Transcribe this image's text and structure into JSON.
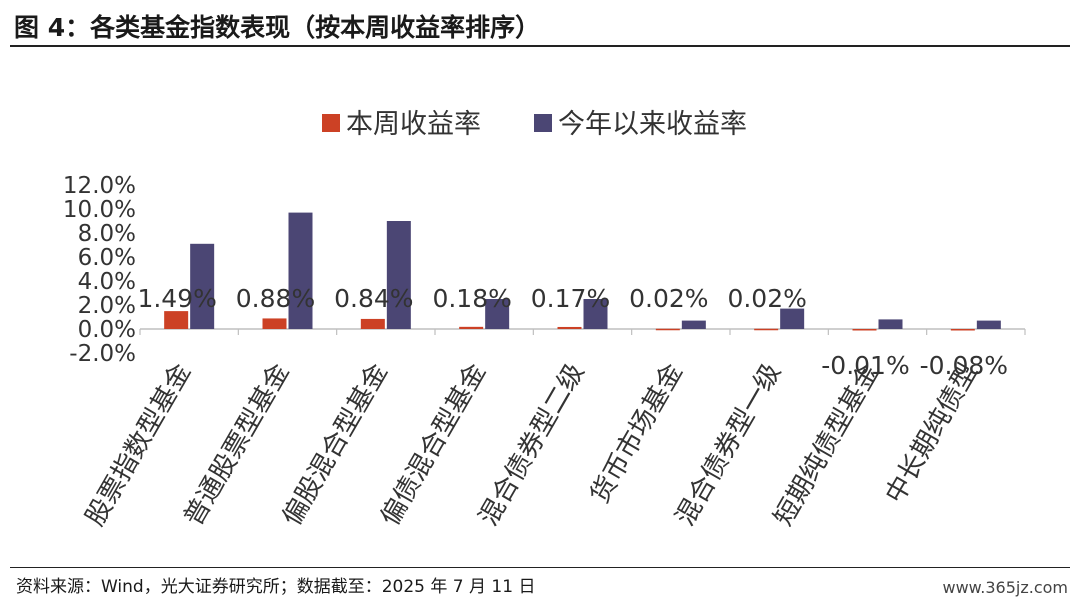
{
  "figure": {
    "title": "图 4：各类基金指数表现（按本周收益率排序）",
    "source": "资料来源：Wind，光大证券研究所；数据截至：2025 年 7 月 11 日",
    "watermark": "www.365jz.com"
  },
  "chart_data": {
    "type": "bar",
    "categories": [
      "股票指数型基金",
      "普通股票型基金",
      "偏股混合型基金",
      "偏债混合型基金",
      "混合债券型二级",
      "货币市场基金",
      "混合债券型一级",
      "短期纯债型基金",
      "中长期纯债型"
    ],
    "series": [
      {
        "name": "本周收益率",
        "color": "#cc4125",
        "values": [
          1.49,
          0.88,
          0.84,
          0.18,
          0.17,
          0.02,
          0.02,
          -0.01,
          -0.08
        ],
        "labels": [
          "1.49%",
          "0.88%",
          "0.84%",
          "0.18%",
          "0.17%",
          "0.02%",
          "0.02%",
          "-0.01%",
          "-0.08%"
        ]
      },
      {
        "name": "今年以来收益率",
        "color": "#4b4674",
        "values": [
          7.1,
          9.7,
          9.0,
          2.5,
          2.5,
          0.7,
          1.7,
          0.8,
          0.7
        ]
      }
    ],
    "y_ticks": [
      "12.0%",
      "10.0%",
      "8.0%",
      "6.0%",
      "4.0%",
      "2.0%",
      "0.0%",
      "-2.0%"
    ],
    "y_tick_values": [
      12,
      10,
      8,
      6,
      4,
      2,
      0,
      -2
    ],
    "ylim": [
      -2,
      12
    ],
    "legend_position": "top-center",
    "grid": false
  }
}
